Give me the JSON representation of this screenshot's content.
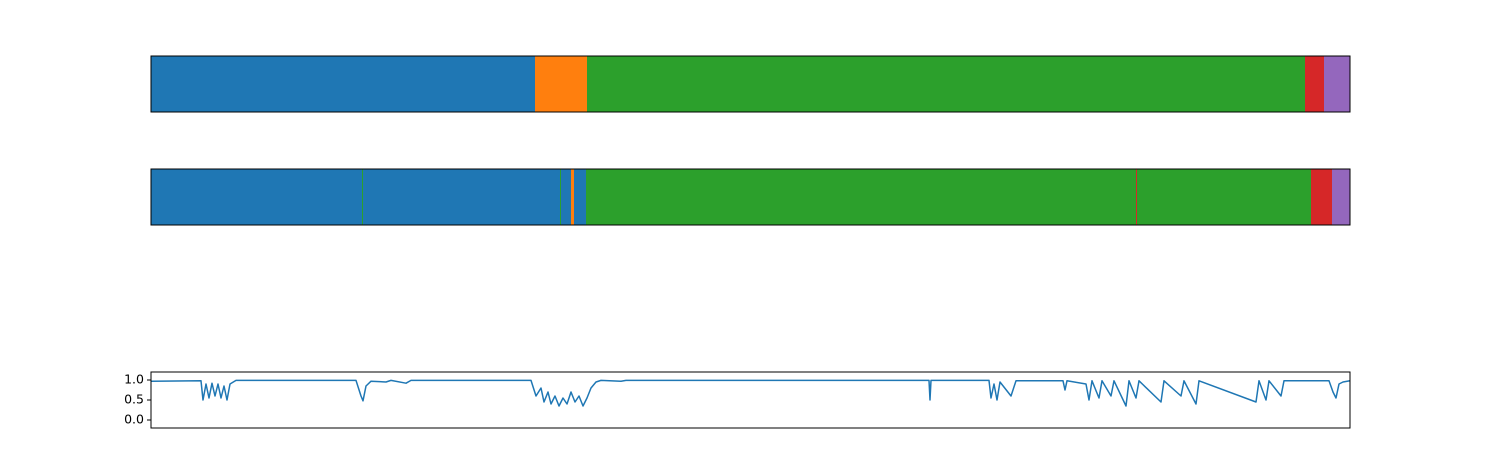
{
  "chart_data": [
    {
      "type": "segments",
      "xlim": [
        0,
        1199
      ],
      "segments": [
        {
          "length": 384,
          "color": "#1f77b4"
        },
        {
          "length": 52,
          "color": "#ff7f0e"
        },
        {
          "length": 718,
          "color": "#2ca02c"
        },
        {
          "length": 19,
          "color": "#d62728"
        },
        {
          "length": 26,
          "color": "#9467bd"
        }
      ]
    },
    {
      "type": "segments",
      "xlim": [
        0,
        1199
      ],
      "segments": [
        {
          "length": 211,
          "color": "#1f77b4"
        },
        {
          "length": 1,
          "color": "#2ca02c"
        },
        {
          "length": 197,
          "color": "#1f77b4"
        },
        {
          "length": 1,
          "color": "#2ca02c"
        },
        {
          "length": 10,
          "color": "#1f77b4"
        },
        {
          "length": 3,
          "color": "#ff7f0e"
        },
        {
          "length": 12,
          "color": "#1f77b4"
        },
        {
          "length": 550,
          "color": "#2ca02c"
        },
        {
          "length": 1,
          "color": "#d62728"
        },
        {
          "length": 174,
          "color": "#2ca02c"
        },
        {
          "length": 21,
          "color": "#d62728"
        },
        {
          "length": 18,
          "color": "#9467bd"
        }
      ]
    },
    {
      "type": "line",
      "color": "#1f77b4",
      "xlim": [
        0,
        1199
      ],
      "ylim": [
        -0.2,
        1.2
      ],
      "yticks": [
        {
          "value": 0,
          "label": "0.0"
        },
        {
          "value": 0.5,
          "label": "0.5"
        },
        {
          "value": 1,
          "label": "1.0"
        }
      ],
      "x": [
        0,
        50,
        52,
        55,
        58,
        61,
        64,
        67,
        70,
        73,
        76,
        79,
        85,
        205,
        210,
        212,
        215,
        220,
        235,
        240,
        255,
        260,
        380,
        385,
        390,
        393,
        397,
        400,
        404,
        408,
        412,
        416,
        420,
        424,
        428,
        432,
        436,
        440,
        445,
        450,
        470,
        475,
        778,
        779,
        780,
        838,
        840,
        843,
        846,
        849,
        860,
        865,
        912,
        914,
        916,
        935,
        938,
        941,
        948,
        951,
        960,
        963,
        975,
        978,
        985,
        988,
        1010,
        1013,
        1030,
        1033,
        1045,
        1048,
        1105,
        1108,
        1115,
        1118,
        1130,
        1133,
        1178,
        1182,
        1185,
        1188,
        1192,
        1199
      ],
      "values": [
        0.97,
        0.98,
        0.5,
        0.9,
        0.55,
        0.92,
        0.6,
        0.9,
        0.55,
        0.85,
        0.5,
        0.9,
        0.99,
        0.99,
        0.6,
        0.48,
        0.85,
        0.97,
        0.95,
        0.99,
        0.92,
        0.99,
        0.99,
        0.6,
        0.8,
        0.45,
        0.7,
        0.4,
        0.6,
        0.35,
        0.55,
        0.4,
        0.7,
        0.45,
        0.6,
        0.35,
        0.55,
        0.8,
        0.95,
        0.99,
        0.97,
        0.99,
        0.99,
        0.5,
        0.99,
        0.99,
        0.55,
        0.9,
        0.5,
        0.95,
        0.6,
        0.98,
        0.98,
        0.75,
        0.98,
        0.9,
        0.5,
        0.98,
        0.55,
        0.98,
        0.6,
        0.98,
        0.35,
        0.98,
        0.55,
        0.98,
        0.45,
        0.98,
        0.6,
        0.98,
        0.4,
        0.98,
        0.45,
        0.98,
        0.5,
        0.98,
        0.6,
        0.98,
        0.98,
        0.7,
        0.55,
        0.9,
        0.95,
        0.98
      ]
    }
  ]
}
